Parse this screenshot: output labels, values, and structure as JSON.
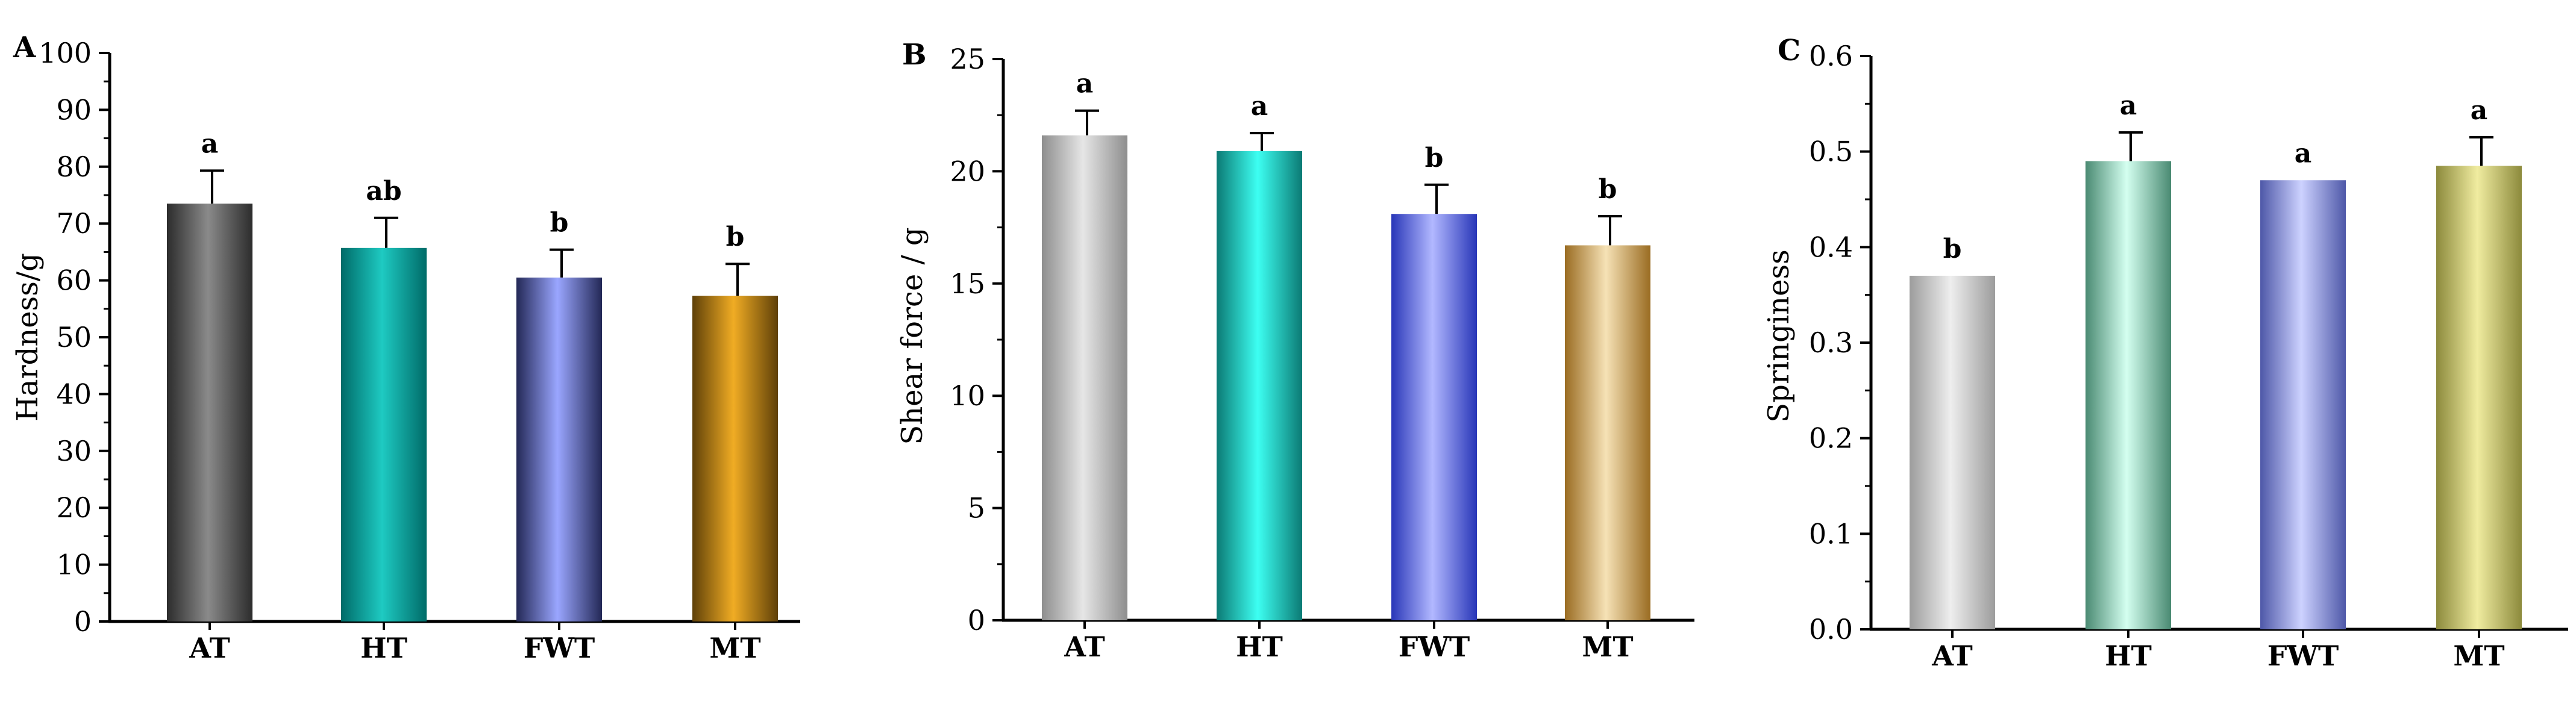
{
  "chart_data": [
    {
      "type": "bar",
      "panel": "A",
      "title": "",
      "xlabel": "",
      "ylabel": "Hardness/g",
      "ylim": [
        0,
        100
      ],
      "yticks": [
        0,
        10,
        20,
        30,
        40,
        50,
        60,
        70,
        80,
        90,
        100
      ],
      "categories": [
        "AT",
        "HT",
        "FWT",
        "MT"
      ],
      "values": [
        73.5,
        65.7,
        60.5,
        57.3
      ],
      "errors": [
        5.8,
        5.3,
        4.9,
        5.6
      ],
      "labels": [
        "a",
        "ab",
        "b",
        "b"
      ],
      "colors": [
        [
          "#2c2c2c",
          "#8a8a8a"
        ],
        [
          "#006b68",
          "#1ecac2"
        ],
        [
          "#232856",
          "#9aa6ff"
        ],
        [
          "#5f4008",
          "#f0ac24"
        ]
      ],
      "grid": false,
      "legend": "none"
    },
    {
      "type": "bar",
      "panel": "B",
      "title": "",
      "xlabel": "",
      "ylabel": "Shear force / g",
      "ylim": [
        0,
        25
      ],
      "yticks": [
        0,
        5,
        10,
        15,
        20,
        25
      ],
      "categories": [
        "AT",
        "HT",
        "FWT",
        "MT"
      ],
      "values": [
        21.6,
        20.9,
        18.1,
        16.7
      ],
      "errors": [
        1.1,
        0.8,
        1.3,
        1.3
      ],
      "labels": [
        "a",
        "a",
        "b",
        "b"
      ],
      "colors": [
        [
          "#8e8e8e",
          "#e6e6e6"
        ],
        [
          "#0b7a74",
          "#3dfff2"
        ],
        [
          "#2836b8",
          "#b2b8ff"
        ],
        [
          "#9a6c22",
          "#f6e2b6"
        ]
      ],
      "grid": false,
      "legend": "none"
    },
    {
      "type": "bar",
      "panel": "C",
      "title": "",
      "xlabel": "",
      "ylabel": "Springiness",
      "ylim": [
        0,
        0.6
      ],
      "yticks": [
        "0.0",
        "0.1",
        "0.2",
        "0.3",
        "0.4",
        "0.5",
        "0.6"
      ],
      "categories": [
        "AT",
        "HT",
        "FWT",
        "MT"
      ],
      "values": [
        0.37,
        0.49,
        0.47,
        0.485
      ],
      "errors": [
        0.0,
        0.03,
        0.0,
        0.03
      ],
      "labels": [
        "b",
        "a",
        "a",
        "a"
      ],
      "colors": [
        [
          "#9c9c9c",
          "#eeeeee"
        ],
        [
          "#4a8a72",
          "#d4fff0"
        ],
        [
          "#4e58a8",
          "#cdd2ff"
        ],
        [
          "#8c8a3c",
          "#f0eca0"
        ]
      ],
      "grid": false,
      "legend": "none"
    }
  ]
}
